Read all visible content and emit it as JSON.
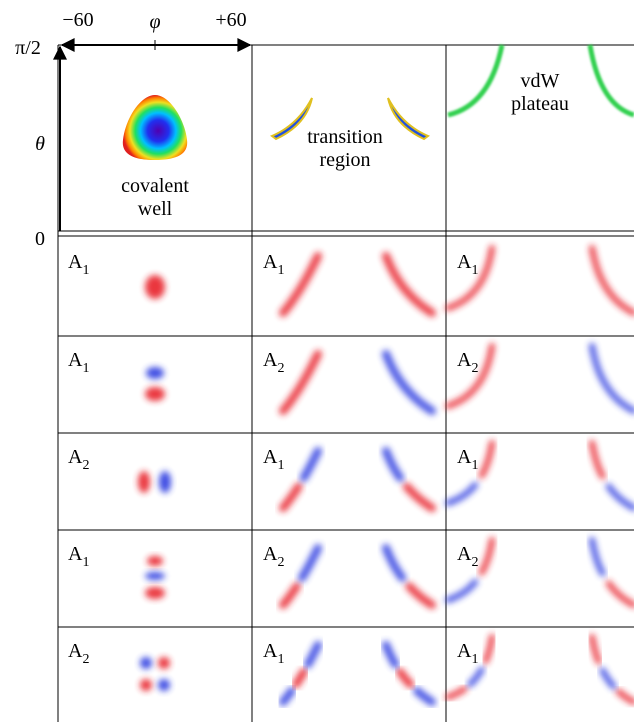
{
  "axes": {
    "phi_min": "−60",
    "phi_label": "φ",
    "phi_max": "+60",
    "theta_max": "π/2",
    "theta_label": "θ",
    "theta_min": "0"
  },
  "regions": [
    {
      "label_lines": [
        "covalent",
        "well"
      ]
    },
    {
      "label_lines": [
        "transition",
        "region"
      ]
    },
    {
      "label_lines": [
        "vdW",
        "plateau"
      ]
    }
  ],
  "rows": [
    [
      {
        "symbol": "A",
        "index": "1"
      },
      {
        "symbol": "A",
        "index": "1"
      },
      {
        "symbol": "A",
        "index": "1"
      }
    ],
    [
      {
        "symbol": "A",
        "index": "1"
      },
      {
        "symbol": "A",
        "index": "2"
      },
      {
        "symbol": "A",
        "index": "2"
      }
    ],
    [
      {
        "symbol": "A",
        "index": "2"
      },
      {
        "symbol": "A",
        "index": "1"
      },
      {
        "symbol": "A",
        "index": "1"
      }
    ],
    [
      {
        "symbol": "A",
        "index": "1"
      },
      {
        "symbol": "A",
        "index": "2"
      },
      {
        "symbol": "A",
        "index": "2"
      }
    ],
    [
      {
        "symbol": "A",
        "index": "2"
      },
      {
        "symbol": "A",
        "index": "1"
      },
      {
        "symbol": "A",
        "index": "1"
      }
    ]
  ]
}
